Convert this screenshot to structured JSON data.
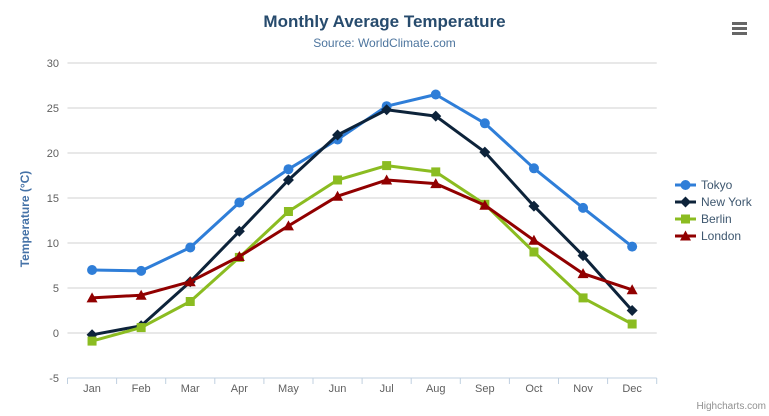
{
  "header": {
    "title": "Monthly Average Temperature",
    "subtitle": "Source: WorldClimate.com"
  },
  "menu": {
    "icon": "hamburger-menu-icon"
  },
  "credits": {
    "text": "Highcharts.com"
  },
  "chart_data": {
    "type": "line",
    "title": "Monthly Average Temperature",
    "subtitle": "Source: WorldClimate.com",
    "xlabel": "",
    "ylabel": "Temperature (°C)",
    "categories": [
      "Jan",
      "Feb",
      "Mar",
      "Apr",
      "May",
      "Jun",
      "Jul",
      "Aug",
      "Sep",
      "Oct",
      "Nov",
      "Dec"
    ],
    "series": [
      {
        "name": "Tokyo",
        "color": "#2f7ed8",
        "marker": "circle",
        "values": [
          7.0,
          6.9,
          9.5,
          14.5,
          18.2,
          21.5,
          25.2,
          26.5,
          23.3,
          18.3,
          13.9,
          9.6
        ]
      },
      {
        "name": "New York",
        "color": "#0d233a",
        "marker": "diamond",
        "values": [
          -0.2,
          0.8,
          5.7,
          11.3,
          17.0,
          22.0,
          24.8,
          24.1,
          20.1,
          14.1,
          8.6,
          2.5
        ]
      },
      {
        "name": "Berlin",
        "color": "#8bbc21",
        "marker": "square",
        "values": [
          -0.9,
          0.6,
          3.5,
          8.4,
          13.5,
          17.0,
          18.6,
          17.9,
          14.3,
          9.0,
          3.9,
          1.0
        ]
      },
      {
        "name": "London",
        "color": "#910000",
        "marker": "triangle",
        "values": [
          3.9,
          4.2,
          5.7,
          8.5,
          11.9,
          15.2,
          17.0,
          16.6,
          14.2,
          10.3,
          6.6,
          4.8
        ]
      }
    ],
    "ylim": [
      -5,
      30
    ],
    "yticks": [
      -5,
      0,
      5,
      10,
      15,
      20,
      25,
      30
    ],
    "grid": true,
    "legend_position": "right",
    "colors": {
      "grid": "#d0d0d0",
      "axis_line": "#c0d0e0",
      "tick_label": "#606060",
      "title_text": "#274b6d",
      "subtitle_text": "#4d759e",
      "legend_text": "#3E576F",
      "credits_text": "#909090"
    }
  }
}
